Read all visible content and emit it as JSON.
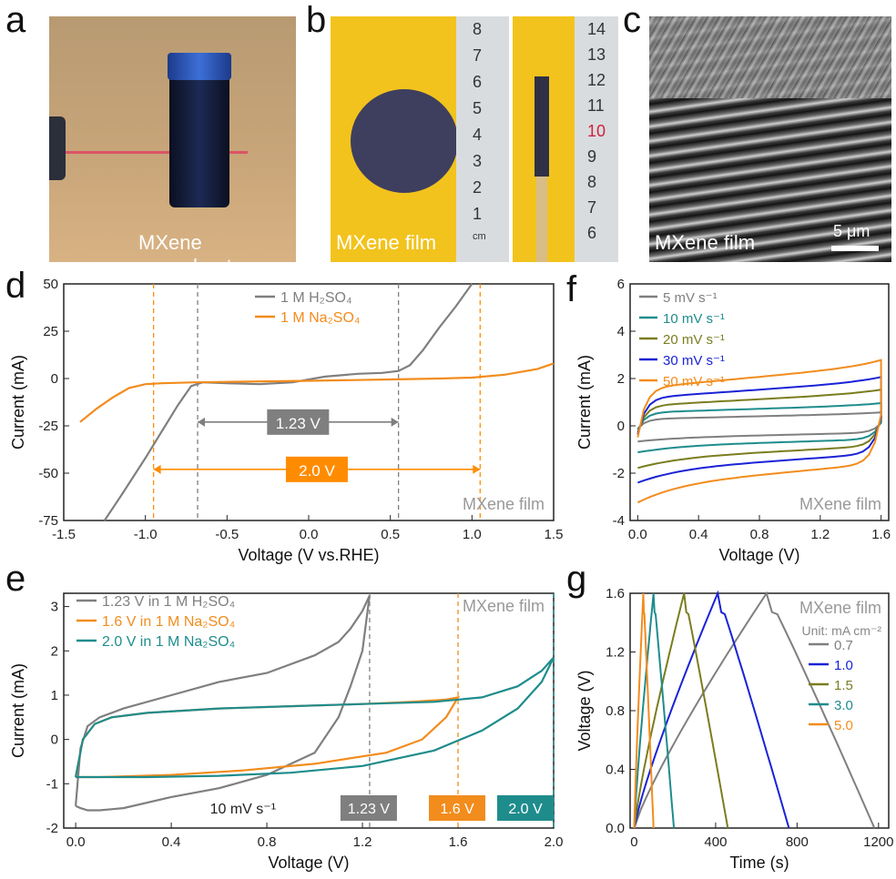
{
  "panels": {
    "a": {
      "letter": "a",
      "caption": "MXene nanosheets"
    },
    "b": {
      "letter": "b",
      "caption": "MXene film",
      "ruler1_ticks": [
        "8",
        "7",
        "6",
        "5",
        "4",
        "3",
        "2",
        "1",
        "cm"
      ],
      "ruler2_ticks": [
        "14",
        "13",
        "12",
        "11",
        "10",
        "9",
        "8",
        "7",
        "6"
      ]
    },
    "c": {
      "letter": "c",
      "caption": "MXene film",
      "scalebar": "5 μm"
    },
    "d": {
      "letter": "d"
    },
    "e": {
      "letter": "e"
    },
    "f": {
      "letter": "f"
    },
    "g": {
      "letter": "g"
    }
  },
  "colors": {
    "gray": "#7f7f7f",
    "orange": "#f28c1d",
    "teal": "#1f8c8c",
    "olive": "#7a7d1e",
    "blue": "#1a22d6",
    "accent_orange": "#ff8c00"
  },
  "chart_data": [
    {
      "panel": "d",
      "type": "line",
      "xlabel": "Voltage (V vs.RHE)",
      "ylabel": "Current (mA)",
      "xlim": [
        -1.5,
        1.5
      ],
      "ylim": [
        -75,
        50
      ],
      "xticks": [
        "-1.5",
        "-1.0",
        "-0.5",
        "0.0",
        "0.5",
        "1.0",
        "1.5"
      ],
      "yticks": [
        "50",
        "25",
        "0",
        "-25",
        "-50",
        "-75"
      ],
      "watermark": "MXene film",
      "annotations": [
        {
          "text": "1.23 V",
          "from": -0.68,
          "to": 0.55,
          "y": -23
        },
        {
          "text": "2.0 V",
          "from": -0.95,
          "to": 1.05,
          "y": -48
        }
      ],
      "vlines": [
        -0.68,
        0.55,
        -0.95,
        1.05
      ],
      "series": [
        {
          "name": "1 M H₂SO₄",
          "color": "#7f7f7f",
          "x": [
            -1.25,
            -1.15,
            -1.0,
            -0.9,
            -0.8,
            -0.72,
            -0.65,
            -0.5,
            -0.3,
            -0.1,
            0.1,
            0.3,
            0.45,
            0.55,
            0.62,
            0.7,
            0.8,
            0.9,
            1.0
          ],
          "y": [
            -75,
            -62,
            -42,
            -28,
            -14,
            -4,
            -2,
            -2.5,
            -3,
            -2,
            1,
            2.5,
            3,
            4,
            7,
            15,
            27,
            38,
            50
          ]
        },
        {
          "name": "1 M Na₂SO₄",
          "color": "#f28c1d",
          "x": [
            -1.4,
            -1.3,
            -1.2,
            -1.1,
            -1.0,
            -0.9,
            -0.7,
            -0.5,
            0,
            0.5,
            0.8,
            1.0,
            1.2,
            1.4,
            1.5
          ],
          "y": [
            -23,
            -16,
            -10,
            -5,
            -3,
            -2.5,
            -2,
            -1.8,
            -1.2,
            -0.5,
            0,
            0.5,
            2,
            5,
            8
          ]
        }
      ]
    },
    {
      "panel": "e",
      "type": "line",
      "xlabel": "Voltage (V)",
      "ylabel": "Current (mA)",
      "xlim": [
        -0.05,
        2.0
      ],
      "ylim": [
        -2,
        3.3
      ],
      "xticks": [
        "0.0",
        "0.4",
        "0.8",
        "1.2",
        "1.6",
        "2.0"
      ],
      "yticks": [
        "3",
        "2",
        "1",
        "0",
        "-1",
        "-2"
      ],
      "watermark": "MXene film",
      "scan_rate_label": "10 mV s⁻¹",
      "window_labels": [
        {
          "text": "1.23 V",
          "x": 1.23,
          "color": "#7f7f7f"
        },
        {
          "text": "1.6 V",
          "x": 1.6,
          "color": "#f28c1d"
        },
        {
          "text": "2.0 V",
          "x": 2.0,
          "color": "#1f8c8c"
        }
      ],
      "series": [
        {
          "name": "1.23 V  in 1 M H₂SO₄",
          "color": "#7f7f7f",
          "x": [
            0.0,
            0.02,
            0.05,
            0.1,
            0.2,
            0.4,
            0.6,
            0.8,
            1.0,
            1.1,
            1.15,
            1.2,
            1.23,
            1.2,
            1.15,
            1.1,
            1.0,
            0.8,
            0.6,
            0.4,
            0.2,
            0.1,
            0.05,
            0.02,
            0.0
          ],
          "y": [
            -1.5,
            -0.2,
            0.3,
            0.5,
            0.7,
            1.0,
            1.3,
            1.5,
            1.9,
            2.2,
            2.5,
            2.9,
            3.25,
            2.0,
            1.2,
            0.5,
            -0.3,
            -0.8,
            -1.1,
            -1.3,
            -1.55,
            -1.6,
            -1.6,
            -1.55,
            -1.5
          ]
        },
        {
          "name": "1.6 V  in 1 M Na₂SO₄",
          "color": "#f28c1d",
          "x": [
            0.0,
            0.03,
            0.08,
            0.15,
            0.3,
            0.6,
            0.9,
            1.2,
            1.4,
            1.55,
            1.6,
            1.55,
            1.45,
            1.3,
            1.0,
            0.7,
            0.4,
            0.1,
            0.02,
            0.0
          ],
          "y": [
            -0.85,
            0.0,
            0.35,
            0.5,
            0.6,
            0.7,
            0.75,
            0.8,
            0.85,
            0.9,
            0.95,
            0.5,
            0.0,
            -0.3,
            -0.55,
            -0.7,
            -0.8,
            -0.85,
            -0.85,
            -0.85
          ]
        },
        {
          "name": "2.0 V  in 1 M Na₂SO₄",
          "color": "#1f8c8c",
          "x": [
            0.0,
            0.03,
            0.08,
            0.15,
            0.3,
            0.6,
            0.9,
            1.2,
            1.5,
            1.7,
            1.85,
            1.95,
            2.0,
            1.95,
            1.85,
            1.7,
            1.5,
            1.2,
            0.9,
            0.6,
            0.3,
            0.1,
            0.02,
            0.0
          ],
          "y": [
            -0.85,
            0.0,
            0.35,
            0.5,
            0.6,
            0.7,
            0.75,
            0.8,
            0.85,
            0.95,
            1.2,
            1.55,
            1.85,
            1.3,
            0.7,
            0.2,
            -0.25,
            -0.6,
            -0.75,
            -0.82,
            -0.85,
            -0.85,
            -0.85,
            -0.85
          ]
        }
      ]
    },
    {
      "panel": "f",
      "type": "line",
      "xlabel": "Voltage (V)",
      "ylabel": "Current (mA)",
      "xlim": [
        -0.05,
        1.65
      ],
      "ylim": [
        -4,
        6
      ],
      "xticks": [
        "0.0",
        "0.4",
        "0.8",
        "1.2",
        "1.6"
      ],
      "yticks": [
        "6",
        "4",
        "2",
        "0",
        "-2",
        "-4"
      ],
      "watermark": "MXene film",
      "series": [
        {
          "name": "5 mV s⁻¹",
          "color": "#7f7f7f",
          "amp": 0.45,
          "tilt": 0.15
        },
        {
          "name": "10 mV s⁻¹",
          "color": "#1f8c8c",
          "amp": 0.8,
          "tilt": 0.2
        },
        {
          "name": "20 mV s⁻¹",
          "color": "#7a7d1e",
          "amp": 1.25,
          "tilt": 0.35
        },
        {
          "name": "30 mV s⁻¹",
          "color": "#1a22d6",
          "amp": 1.7,
          "tilt": 0.45
        },
        {
          "name": "50 mV s⁻¹",
          "color": "#f28c1d",
          "amp": 2.3,
          "tilt": 0.6
        }
      ]
    },
    {
      "panel": "g",
      "type": "line",
      "xlabel": "Time (s)",
      "ylabel": "Voltage (V)",
      "xlim": [
        -20,
        1250
      ],
      "ylim": [
        0,
        1.6
      ],
      "xticks": [
        "0",
        "400",
        "800",
        "1200"
      ],
      "yticks": [
        "1.6",
        "1.2",
        "0.8",
        "0.4",
        "0.0"
      ],
      "watermark": "MXene film",
      "legend_title": "Unit: mA cm⁻²",
      "series": [
        {
          "name": "0.7",
          "color": "#7f7f7f",
          "peak": 650,
          "end": 1180
        },
        {
          "name": "1.0",
          "color": "#1a22d6",
          "peak": 410,
          "end": 760
        },
        {
          "name": "1.5",
          "color": "#7a7d1e",
          "peak": 245,
          "end": 460
        },
        {
          "name": "3.0",
          "color": "#1f8c8c",
          "peak": 95,
          "end": 195
        },
        {
          "name": "5.0",
          "color": "#f28c1d",
          "peak": 45,
          "end": 95
        }
      ]
    }
  ]
}
